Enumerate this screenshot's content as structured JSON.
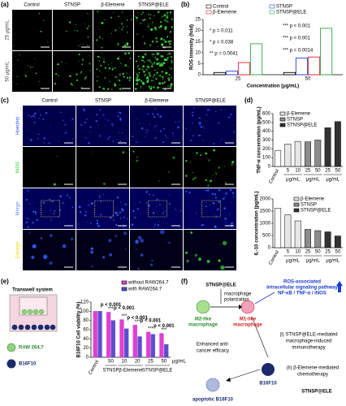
{
  "panel_a": {
    "label": "(a)",
    "columns": [
      "Control",
      "STNSP",
      "β-Elemene",
      "STNSP@ELE"
    ],
    "rows": [
      "25 μg/mL",
      "50 μg/mL"
    ]
  },
  "panel_c": {
    "label": "(c)",
    "columns": [
      "Control",
      "STNSP",
      "β-Elemene",
      "STNSP@ELE"
    ],
    "rows": [
      "Hoechst",
      "iNOS",
      "Merge",
      "Enlarge"
    ]
  },
  "chart_data": [
    {
      "type": "bar",
      "panel_label": "(b)",
      "categories": [
        "25",
        "50"
      ],
      "series": [
        {
          "name": "Control",
          "color": "#000000",
          "values": [
            1,
            1
          ]
        },
        {
          "name": "STNSP",
          "color": "#1f3fd6",
          "values": [
            1.6,
            7.5
          ]
        },
        {
          "name": "β-Elemene",
          "color": "#e0202a",
          "values": [
            5.5,
            8
          ]
        },
        {
          "name": "STNSP@ELE",
          "color": "#2fa84a",
          "values": [
            14,
            21
          ]
        }
      ],
      "ylim": [
        0,
        25
      ],
      "yticks": [
        0,
        5,
        10,
        15,
        20,
        25
      ],
      "ylabel": "ROS intensity (fold)",
      "xlabel": "Concentration (μg/mL)",
      "annotations": [
        "* p = 0.011",
        "* p = 0.038",
        "** p = 0.0041",
        "*** p < 0.001",
        "*** p < 0.001",
        "*** p = 0.0014"
      ]
    },
    {
      "type": "bar",
      "panel_label": "(d)",
      "categories": [
        "Control",
        "5",
        "10",
        "25",
        "50",
        "25",
        "50"
      ],
      "values": [
        180,
        255,
        285,
        280,
        300,
        440,
        510
      ],
      "colors": [
        "#ffffff",
        "#e6e6e6",
        "#e6e6e6",
        "#8c8c8c",
        "#8c8c8c",
        "#333333",
        "#333333"
      ],
      "group_labels": [
        "μg/mL",
        "μg/mL",
        "μg/mL"
      ],
      "legend": [
        {
          "name": "β-Elemene",
          "color": "#e6e6e6"
        },
        {
          "name": "STNSP",
          "color": "#8c8c8c"
        },
        {
          "name": "STNSP@ELE",
          "color": "#333333"
        }
      ],
      "ylim": [
        0,
        600
      ],
      "yticks": [
        0,
        100,
        200,
        300,
        400,
        500,
        600
      ],
      "ylabel": "TNF-α concentration (pg/mL)"
    },
    {
      "type": "bar",
      "categories": [
        "Control",
        "5",
        "10",
        "25",
        "50",
        "25",
        "50"
      ],
      "values": [
        1620,
        1350,
        1100,
        750,
        700,
        650,
        480
      ],
      "colors": [
        "#ffffff",
        "#e6e6e6",
        "#e6e6e6",
        "#8c8c8c",
        "#8c8c8c",
        "#333333",
        "#333333"
      ],
      "group_labels": [
        "μg/mL",
        "μg/mL",
        "μg/mL"
      ],
      "legend": [
        {
          "name": "β-Elemene",
          "color": "#e6e6e6"
        },
        {
          "name": "STNSP",
          "color": "#8c8c8c"
        },
        {
          "name": "STNSP@ELE",
          "color": "#333333"
        }
      ],
      "ylim": [
        0,
        2000
      ],
      "yticks": [
        0,
        500,
        1000,
        1500,
        2000
      ],
      "ylabel": "IL-10 concentration (pg/mL)"
    },
    {
      "type": "bar",
      "categories": [
        "Control",
        "50",
        "10",
        "20",
        "25",
        "50"
      ],
      "series": [
        {
          "name": "without RAW264.7",
          "color": "#e040d0",
          "values": [
            100,
            98,
            82,
            70,
            55,
            52
          ]
        },
        {
          "name": "with RAW264.7",
          "color": "#5a4fcf",
          "values": [
            100,
            80,
            62,
            45,
            50,
            28
          ]
        }
      ],
      "group_labels": [
        "STNSP",
        "β-Elemene",
        "STNSP@ELE"
      ],
      "unit_label": "μg/mL",
      "ylim": [
        0,
        120
      ],
      "yticks": [
        0,
        20,
        40,
        60,
        80,
        100,
        120
      ],
      "ylabel": "B16F10 Cell viability (%)",
      "annotations": [
        {
          "stars": "***",
          "text": "p < 0.001"
        },
        {
          "stars": "***",
          "text": "p < 0.001"
        },
        {
          "stars": "***",
          "text": "p < 0.001"
        },
        {
          "stars": "***",
          "text": "p < 0.001"
        },
        {
          "stars": "***",
          "text": "p < 0.001"
        }
      ]
    }
  ],
  "panel_e": {
    "label": "(e)",
    "title": "Transwell system",
    "cells": [
      "RAW 264.7",
      "B16F10"
    ]
  },
  "panel_f": {
    "label": "(f)",
    "agent_top": "STNSP@ELE",
    "polarization": [
      "macrophage",
      "polarization"
    ],
    "m2": [
      "M2-like",
      "macrophage"
    ],
    "m1": [
      "M1-like",
      "macrophage"
    ],
    "ros_pathway": [
      "ROS-associated",
      "intracellular signaling pathway",
      "NF-κB / TNF-α / iNOS"
    ],
    "immunotherapy": [
      "(i) STNSP@ELE-mediated",
      "macrophage-induced",
      "immunotherapy"
    ],
    "efficacy": [
      "Enhanced anti-",
      "cancer efficacy"
    ],
    "chemotherapy": [
      "(ii) β-Elemene-mediated",
      "chemotherapy"
    ],
    "tumor": "B16F10",
    "agent_bottom": "STNSP@ELE",
    "apoptotic": "apoptotic B16F10"
  }
}
